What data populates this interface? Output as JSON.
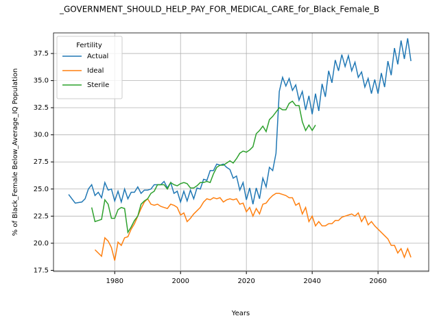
{
  "chart_data": {
    "type": "line",
    "title": "_GOVERNMENT_SHOULD_HELP_PAY_FOR_MEDICAL_CARE_for_Black_Female_B",
    "xlabel": "Years",
    "ylabel": "% of Black_Female Below_Average_IQ Population",
    "legend_title": "Fertility",
    "legend": "upper left",
    "grid": true,
    "x": [
      1966,
      1967,
      1968,
      1969,
      1970,
      1971,
      1972,
      1973,
      1974,
      1975,
      1976,
      1977,
      1978,
      1979,
      1980,
      1981,
      1982,
      1983,
      1984,
      1985,
      1986,
      1987,
      1988,
      1989,
      1990,
      1991,
      1992,
      1993,
      1994,
      1995,
      1996,
      1997,
      1998,
      1999,
      2000,
      2001,
      2002,
      2003,
      2004,
      2005,
      2006,
      2007,
      2008,
      2009,
      2010,
      2011,
      2012,
      2013,
      2014,
      2015,
      2016,
      2017,
      2018,
      2019,
      2020,
      2021,
      2022,
      2023,
      2024,
      2025,
      2026,
      2027,
      2028,
      2029,
      2030,
      2031,
      2032,
      2033,
      2034,
      2035,
      2036,
      2037,
      2038,
      2039,
      2040,
      2041,
      2042,
      2043,
      2044,
      2045,
      2046,
      2047,
      2048,
      2049,
      2050,
      2051,
      2052,
      2053,
      2054,
      2055,
      2056,
      2057,
      2058,
      2059,
      2060,
      2061,
      2062,
      2063,
      2064,
      2065,
      2066,
      2067,
      2068,
      2069,
      2070
    ],
    "series": [
      {
        "name": "Actual",
        "color": "#1f77b4",
        "values": [
          24.5,
          24.1,
          23.7,
          23.75,
          23.8,
          24.1,
          25.0,
          25.4,
          24.4,
          24.7,
          24.2,
          25.6,
          24.9,
          25.0,
          23.9,
          24.8,
          23.8,
          25.0,
          24.1,
          24.7,
          24.7,
          25.2,
          24.6,
          24.9,
          24.9,
          25.0,
          25.4,
          25.4,
          25.4,
          25.7,
          25.1,
          25.6,
          24.6,
          24.8,
          23.8,
          24.8,
          23.9,
          24.9,
          24.1,
          25.1,
          25.0,
          25.9,
          25.8,
          26.7,
          26.7,
          27.3,
          27.2,
          27.3,
          27.0,
          26.8,
          26.0,
          26.2,
          24.9,
          25.6,
          24.0,
          25.1,
          23.6,
          25.1,
          24.1,
          26.0,
          25.2,
          27.0,
          26.7,
          28.3,
          34.0,
          35.3,
          34.5,
          35.2,
          34.1,
          34.6,
          33.2,
          34.0,
          32.3,
          33.6,
          31.9,
          33.8,
          32.2,
          34.7,
          33.5,
          35.9,
          34.8,
          36.9,
          35.9,
          37.4,
          36.3,
          37.3,
          35.9,
          36.7,
          35.3,
          35.8,
          34.4,
          35.2,
          33.8,
          35.1,
          33.8,
          35.7,
          34.4,
          36.8,
          35.5,
          38.0,
          36.5,
          38.7,
          37.0,
          38.9,
          36.8
        ]
      },
      {
        "name": "Ideal",
        "color": "#ff7f0e",
        "values": [
          null,
          null,
          null,
          null,
          null,
          null,
          null,
          null,
          19.4,
          19.1,
          18.8,
          20.5,
          20.2,
          19.6,
          18.4,
          20.1,
          19.8,
          20.5,
          20.6,
          21.3,
          21.8,
          22.5,
          23.2,
          23.8,
          24.1,
          23.6,
          23.5,
          23.6,
          23.4,
          23.3,
          23.2,
          23.6,
          23.5,
          23.3,
          22.6,
          22.8,
          22.0,
          22.3,
          22.7,
          23.0,
          23.3,
          23.8,
          24.1,
          24.0,
          24.2,
          24.1,
          24.2,
          23.8,
          24.0,
          24.1,
          24.0,
          24.1,
          23.6,
          23.7,
          22.9,
          23.3,
          22.5,
          23.2,
          22.7,
          23.6,
          23.7,
          24.1,
          24.4,
          24.6,
          24.6,
          24.5,
          24.4,
          24.2,
          24.2,
          23.5,
          23.7,
          22.7,
          23.3,
          22.0,
          22.5,
          21.6,
          22.0,
          21.6,
          21.6,
          21.8,
          21.8,
          22.1,
          22.1,
          22.4,
          22.5,
          22.6,
          22.7,
          22.5,
          22.8,
          22.0,
          22.5,
          21.7,
          22.0,
          21.6,
          21.3,
          21.0,
          20.7,
          20.4,
          19.8,
          19.8,
          19.1,
          19.5,
          18.7,
          19.5,
          18.7
        ]
      },
      {
        "name": "Sterile",
        "color": "#2ca02c",
        "values": [
          null,
          null,
          null,
          null,
          null,
          null,
          null,
          23.3,
          22.0,
          22.1,
          22.2,
          24.0,
          23.6,
          22.3,
          22.3,
          23.1,
          23.3,
          23.2,
          21.0,
          21.5,
          22.1,
          22.5,
          23.6,
          23.9,
          24.1,
          24.6,
          24.8,
          25.4,
          25.4,
          25.4,
          25.0,
          25.6,
          25.4,
          25.3,
          25.5,
          25.6,
          25.5,
          25.1,
          25.1,
          25.3,
          25.6,
          25.6,
          25.7,
          25.6,
          26.4,
          27.0,
          27.2,
          27.2,
          27.4,
          27.6,
          27.4,
          27.8,
          28.3,
          28.5,
          28.4,
          28.6,
          28.9,
          30.1,
          30.4,
          30.8,
          30.3,
          31.4,
          31.7,
          32.1,
          32.5,
          32.3,
          32.3,
          32.9,
          33.1,
          32.7,
          32.7,
          31.2,
          30.4,
          30.9,
          30.4,
          30.9,
          null,
          null,
          null,
          null,
          null,
          null,
          null,
          null,
          null,
          null,
          null,
          null,
          null,
          null,
          null,
          null,
          null,
          null,
          null,
          null,
          null,
          null,
          null,
          null,
          null,
          null,
          null,
          null,
          null
        ]
      }
    ],
    "xlim": [
      1961.4,
      2075.4
    ],
    "xticks": [
      1980,
      2000,
      2020,
      2040,
      2060
    ],
    "ylim": [
      17.4,
      39.4
    ],
    "yticks": [
      17.5,
      {
        "value": 20,
        "label": "20.0"
      },
      22.5,
      {
        "value": 25,
        "label": "25.0"
      },
      27.5,
      {
        "value": 30,
        "label": "30.0"
      },
      32.5,
      {
        "value": 35,
        "label": "35.0"
      },
      37.5
    ]
  }
}
